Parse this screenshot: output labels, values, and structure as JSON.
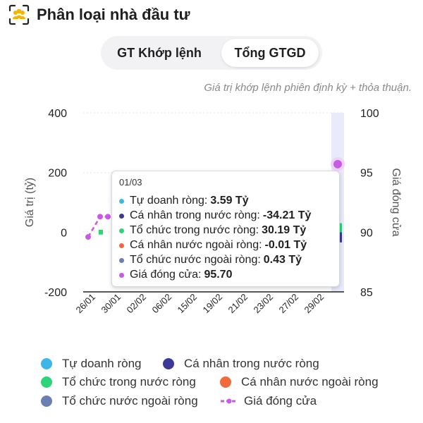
{
  "header": {
    "title": "Phân loại nhà đầu tư",
    "logo_icon": "investor-group-icon"
  },
  "tabs": [
    {
      "label": "GT Khớp lệnh",
      "active": false
    },
    {
      "label": "Tổng GTGD",
      "active": true
    }
  ],
  "note": "Giá trị khớp lệnh phiên định kỳ + thỏa thuận.",
  "tooltip": {
    "date": "01/03",
    "rows": [
      {
        "label": "Tự doanh ròng:",
        "value": "3.59 Tỷ",
        "color": "#3fb6e8"
      },
      {
        "label": "Cá nhân trong nước ròng:",
        "value": "-34.21 Tỷ",
        "color": "#3b3a99"
      },
      {
        "label": "Tổ chức trong nước ròng:",
        "value": "30.19 Tỷ",
        "color": "#2ed47a"
      },
      {
        "label": "Cá nhân nước ngoài ròng:",
        "value": "-0.01 Tỷ",
        "color": "#f06a3c"
      },
      {
        "label": "Tổ chức nước ngoài ròng:",
        "value": "0.43 Tỷ",
        "color": "#6b7fb3"
      },
      {
        "label": "Giá đóng cửa:",
        "value": "95.70",
        "color": "#c95ae6"
      }
    ]
  },
  "legend": [
    {
      "label": "Tự doanh ròng",
      "color": "#3fb6e8",
      "shape": "dot"
    },
    {
      "label": "Cá nhân trong nước ròng",
      "color": "#3b3a99",
      "shape": "dot"
    },
    {
      "label": "Tổ chức trong nước ròng",
      "color": "#2ed47a",
      "shape": "dot"
    },
    {
      "label": "Cá nhân nước ngoài ròng",
      "color": "#f06a3c",
      "shape": "dot"
    },
    {
      "label": "Tổ chức nước ngoài ròng",
      "color": "#6b7fb3",
      "shape": "dot"
    },
    {
      "label": "Giá đóng cửa",
      "color": "#c95ae6",
      "shape": "dashed-line"
    }
  ],
  "chart_data": {
    "type": "bar",
    "ylabel": "Giá trị (tỷ)",
    "y2label": "Giá đóng cửa",
    "ylim": [
      -200,
      400
    ],
    "y2lim": [
      85,
      100
    ],
    "yticks": [
      "400",
      "200",
      "0",
      "-200"
    ],
    "y2ticks": [
      "100",
      "95",
      "90",
      "85"
    ],
    "xticks": [
      "26/01",
      "30/01",
      "02/02",
      "06/02",
      "15/02",
      "19/02",
      "21/02",
      "23/02",
      "27/02",
      "29/02"
    ],
    "highlight_index": 11,
    "visible_series_values": [
      {
        "name": "Cá nhân trong nước ròng",
        "index": 11,
        "value": -34.21
      },
      {
        "name": "Tổ chức trong nước ròng",
        "index": 11,
        "value": 30.19
      }
    ],
    "line_series": {
      "name": "Giá đóng cửa",
      "points": [
        {
          "index": 0,
          "value": 89.6
        },
        {
          "index": 1,
          "value": 91.3
        },
        {
          "index": 2,
          "value": 91.3
        },
        {
          "index": 11,
          "value": 95.7
        }
      ]
    }
  }
}
